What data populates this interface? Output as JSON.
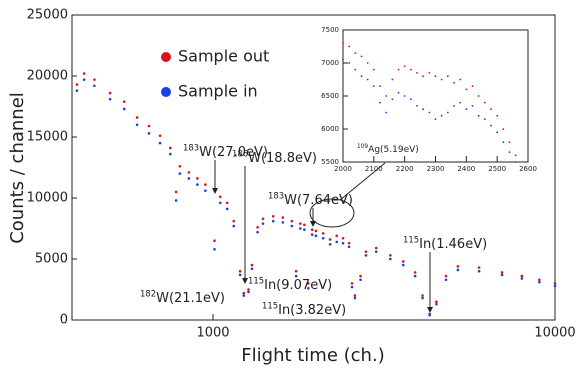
{
  "chart_data": [
    {
      "type": "scatter",
      "x_label": "Flight time (ch.)",
      "y_label": "Counts / channel",
      "log_x": true,
      "xlim": [
        387,
        10000
      ],
      "xticks": [
        1000,
        10000
      ],
      "ylim": [
        0,
        25000
      ],
      "yticks": [
        0,
        5000,
        10000,
        15000,
        20000,
        25000
      ],
      "legend": "upper-left",
      "x": [
        400,
        420,
        450,
        500,
        550,
        600,
        650,
        700,
        750,
        780,
        800,
        850,
        900,
        950,
        1010,
        1050,
        1100,
        1150,
        1200,
        1230,
        1270,
        1300,
        1350,
        1400,
        1500,
        1600,
        1700,
        1750,
        1800,
        1850,
        1900,
        1950,
        2000,
        2100,
        2200,
        2300,
        2400,
        2500,
        2550,
        2600,
        2700,
        2800,
        3000,
        3300,
        3600,
        3900,
        4100,
        4300,
        4500,
        4800,
        5200,
        6000,
        7000,
        8000,
        9000,
        10000
      ],
      "series": [
        {
          "name": "Sample out",
          "color": "#e0101a",
          "values": [
            19300,
            20200,
            19700,
            18600,
            17900,
            16600,
            15900,
            15100,
            14100,
            10500,
            12600,
            12100,
            11600,
            11100,
            6500,
            10100,
            9600,
            8100,
            4000,
            2200,
            2500,
            4500,
            7600,
            8300,
            8500,
            8400,
            8100,
            4000,
            7900,
            7800,
            3000,
            7400,
            7300,
            7100,
            6600,
            6900,
            6700,
            6300,
            3000,
            2000,
            3600,
            5600,
            5900,
            5300,
            4800,
            3900,
            2000,
            500,
            1500,
            3600,
            4400,
            4300,
            3900,
            3600,
            3300,
            3000
          ]
        },
        {
          "name": "Sample in",
          "color": "#1a3ee8",
          "values": [
            18800,
            19700,
            19200,
            18100,
            17300,
            16000,
            15300,
            14500,
            13600,
            9800,
            12000,
            11600,
            11100,
            10600,
            5800,
            9600,
            9100,
            7700,
            3700,
            2000,
            2300,
            4200,
            7200,
            7900,
            8100,
            8000,
            7700,
            3600,
            7500,
            7400,
            2600,
            7000,
            6900,
            6700,
            6200,
            6400,
            6300,
            6000,
            2700,
            1800,
            3300,
            5300,
            5600,
            5000,
            4500,
            3600,
            1800,
            400,
            1300,
            3300,
            4100,
            4000,
            3700,
            3400,
            3100,
            2800
          ]
        }
      ],
      "annotations": [
        {
          "sup": "183",
          "text": "W(27.0eV)"
        },
        {
          "sup": "186",
          "text": "W(18.8eV)"
        },
        {
          "sup": "183",
          "text": "W(7.64eV)"
        },
        {
          "sup": "182",
          "text": "W(21.1eV)"
        },
        {
          "sup": "115",
          "text": "In(9.07eV)"
        },
        {
          "sup": "115",
          "text": "In(3.82eV)"
        },
        {
          "sup": "115",
          "text": "In(1.46eV)"
        }
      ]
    },
    {
      "type": "scatter",
      "xlim": [
        2000,
        2600
      ],
      "xticks": [
        2000,
        2100,
        2200,
        2300,
        2400,
        2500,
        2600
      ],
      "ylim": [
        5500,
        7500
      ],
      "yticks": [
        5500,
        6000,
        6500,
        7000,
        7500
      ],
      "x": [
        2000,
        2020,
        2040,
        2060,
        2080,
        2100,
        2120,
        2140,
        2160,
        2180,
        2200,
        2220,
        2240,
        2260,
        2280,
        2300,
        2320,
        2340,
        2360,
        2380,
        2400,
        2420,
        2440,
        2460,
        2480,
        2500,
        2520,
        2540,
        2560
      ],
      "series": [
        {
          "color": "#e0101a",
          "values": [
            7300,
            7250,
            7150,
            7100,
            7000,
            6900,
            6650,
            6500,
            6750,
            6900,
            6950,
            6900,
            6850,
            6800,
            6850,
            6800,
            6750,
            6800,
            6700,
            6750,
            6600,
            6650,
            6500,
            6400,
            6300,
            6200,
            6000,
            5800,
            5600
          ]
        },
        {
          "color": "#1a3ee8",
          "values": [
            7050,
            7000,
            6900,
            6800,
            6750,
            6650,
            6400,
            6250,
            6450,
            6550,
            6500,
            6450,
            6350,
            6300,
            6250,
            6150,
            6200,
            6250,
            6350,
            6400,
            6300,
            6350,
            6200,
            6150,
            6050,
            5950,
            5800,
            5650,
            5500
          ]
        }
      ],
      "annotations": [
        {
          "sup": "109",
          "text": "Ag(5.19eV)"
        }
      ]
    }
  ]
}
